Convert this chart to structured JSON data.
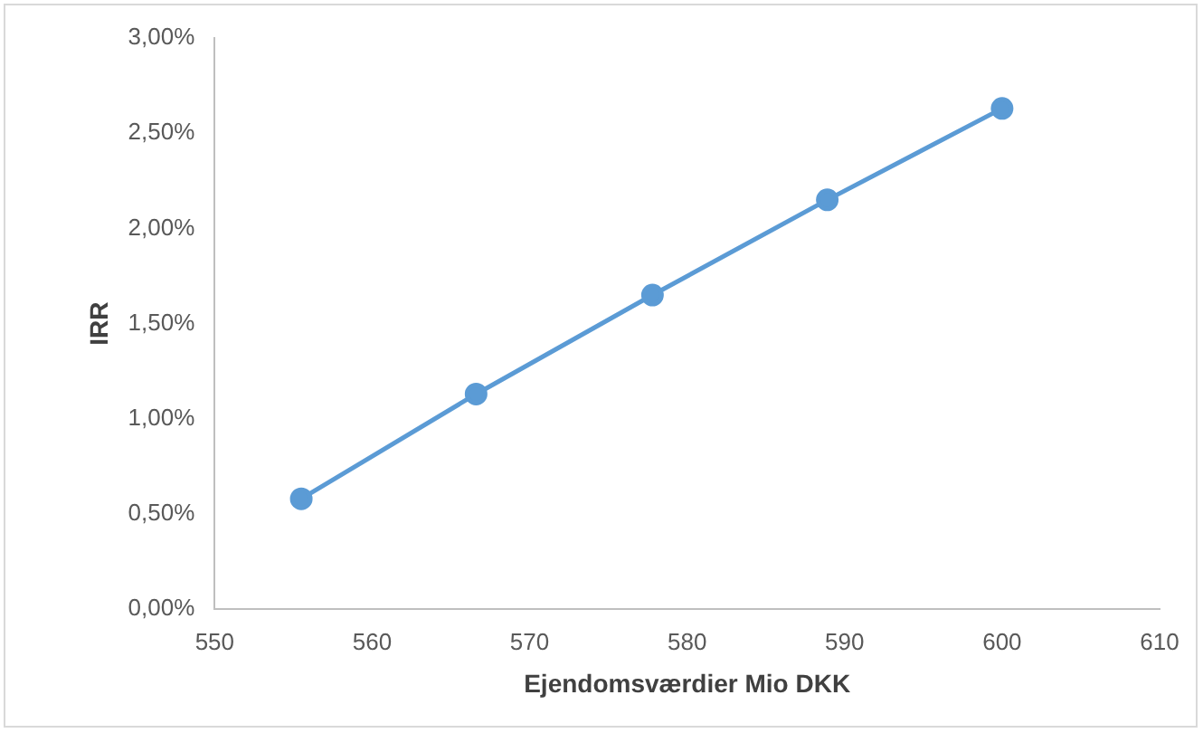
{
  "chart_data": {
    "type": "line",
    "xlabel": "Ejendomsværdier Mio DKK",
    "ylabel": "IRR",
    "x": [
      555.5,
      566.6,
      577.8,
      588.9,
      600
    ],
    "series": [
      {
        "color": "#5b9bd5",
        "values": [
          0.58,
          1.13,
          1.65,
          2.15,
          2.63
        ]
      }
    ],
    "xlim": [
      550,
      610
    ],
    "xticks": [
      550,
      560,
      570,
      580,
      590,
      600,
      610
    ],
    "ylim": [
      0,
      3
    ],
    "yticks": [
      {
        "value": 0,
        "label": "0,00%"
      },
      {
        "value": 0.5,
        "label": "0,50%"
      },
      {
        "value": 1,
        "label": "1,00%"
      },
      {
        "value": 1.5,
        "label": "1,50%"
      },
      {
        "value": 2,
        "label": "2,00%"
      },
      {
        "value": 2.5,
        "label": "2,50%"
      },
      {
        "value": 3,
        "label": "3,00%"
      }
    ],
    "grid": false,
    "legend": false,
    "marker": "circle",
    "line_style": "solid"
  }
}
